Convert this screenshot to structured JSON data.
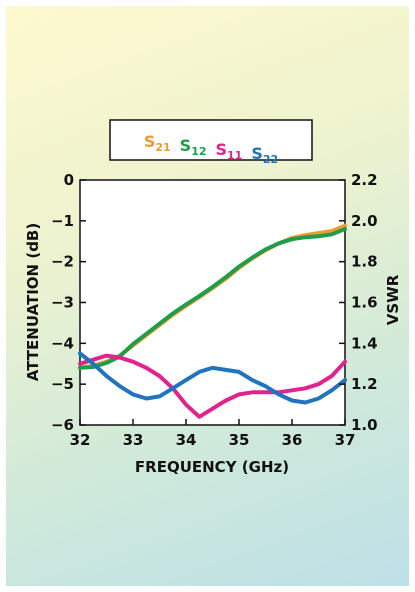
{
  "chart_data": {
    "type": "line",
    "xlabel": "FREQUENCY (GHz)",
    "ylabel_left": "ATTENUATION (dB)",
    "ylabel_right": "VSWR",
    "xlim": [
      32,
      37
    ],
    "ylim_left": [
      -6,
      0
    ],
    "ylim_right": [
      1.0,
      2.2
    ],
    "x_ticks": [
      "32",
      "33",
      "34",
      "35",
      "36",
      "37"
    ],
    "y_left_ticks": [
      "0",
      "−1",
      "−2",
      "−3",
      "−4",
      "−5",
      "−6"
    ],
    "y_right_ticks": [
      "2.2",
      "2.0",
      "1.8",
      "1.6",
      "1.4",
      "1.2",
      "1.0"
    ],
    "legend_position": "top-center",
    "grid": false,
    "series": [
      {
        "name": "S",
        "sub": "21",
        "color": "#f39a2e",
        "axis": "left",
        "x": [
          32.0,
          32.25,
          32.5,
          32.75,
          33.0,
          33.25,
          33.5,
          33.75,
          34.0,
          34.25,
          34.5,
          34.75,
          35.0,
          35.25,
          35.5,
          35.75,
          36.0,
          36.25,
          36.5,
          36.75,
          37.0
        ],
        "y": [
          -4.6,
          -4.55,
          -4.45,
          -4.3,
          -4.05,
          -3.8,
          -3.55,
          -3.3,
          -3.08,
          -2.87,
          -2.65,
          -2.42,
          -2.15,
          -1.92,
          -1.72,
          -1.55,
          -1.42,
          -1.35,
          -1.3,
          -1.25,
          -1.12
        ]
      },
      {
        "name": "S",
        "sub": "12",
        "color": "#1e9e4a",
        "axis": "left",
        "x": [
          32.0,
          32.25,
          32.5,
          32.75,
          33.0,
          33.25,
          33.5,
          33.75,
          34.0,
          34.25,
          34.5,
          34.75,
          35.0,
          35.25,
          35.5,
          35.75,
          36.0,
          36.25,
          36.5,
          36.75,
          37.0
        ],
        "y": [
          -4.6,
          -4.58,
          -4.48,
          -4.32,
          -4.02,
          -3.77,
          -3.52,
          -3.27,
          -3.05,
          -2.84,
          -2.62,
          -2.38,
          -2.12,
          -1.9,
          -1.7,
          -1.55,
          -1.45,
          -1.4,
          -1.38,
          -1.33,
          -1.2
        ]
      },
      {
        "name": "S",
        "sub": "11",
        "color": "#e0238f",
        "axis": "right",
        "x": [
          32.0,
          32.25,
          32.5,
          32.75,
          33.0,
          33.25,
          33.5,
          33.75,
          34.0,
          34.25,
          34.5,
          34.75,
          35.0,
          35.25,
          35.5,
          35.75,
          36.0,
          36.25,
          36.5,
          36.75,
          37.0
        ],
        "y": [
          1.3,
          1.32,
          1.34,
          1.33,
          1.31,
          1.28,
          1.24,
          1.18,
          1.1,
          1.04,
          1.08,
          1.12,
          1.15,
          1.16,
          1.16,
          1.16,
          1.17,
          1.18,
          1.2,
          1.24,
          1.31
        ]
      },
      {
        "name": "S",
        "sub": "22",
        "color": "#1f73bf",
        "axis": "right",
        "x": [
          32.0,
          32.25,
          32.5,
          32.75,
          33.0,
          33.25,
          33.5,
          33.75,
          34.0,
          34.25,
          34.5,
          34.75,
          35.0,
          35.25,
          35.5,
          35.75,
          36.0,
          36.25,
          36.5,
          36.75,
          37.0
        ],
        "y": [
          1.35,
          1.3,
          1.24,
          1.19,
          1.15,
          1.13,
          1.14,
          1.18,
          1.22,
          1.26,
          1.28,
          1.27,
          1.26,
          1.22,
          1.19,
          1.15,
          1.12,
          1.11,
          1.13,
          1.17,
          1.22
        ]
      }
    ]
  }
}
